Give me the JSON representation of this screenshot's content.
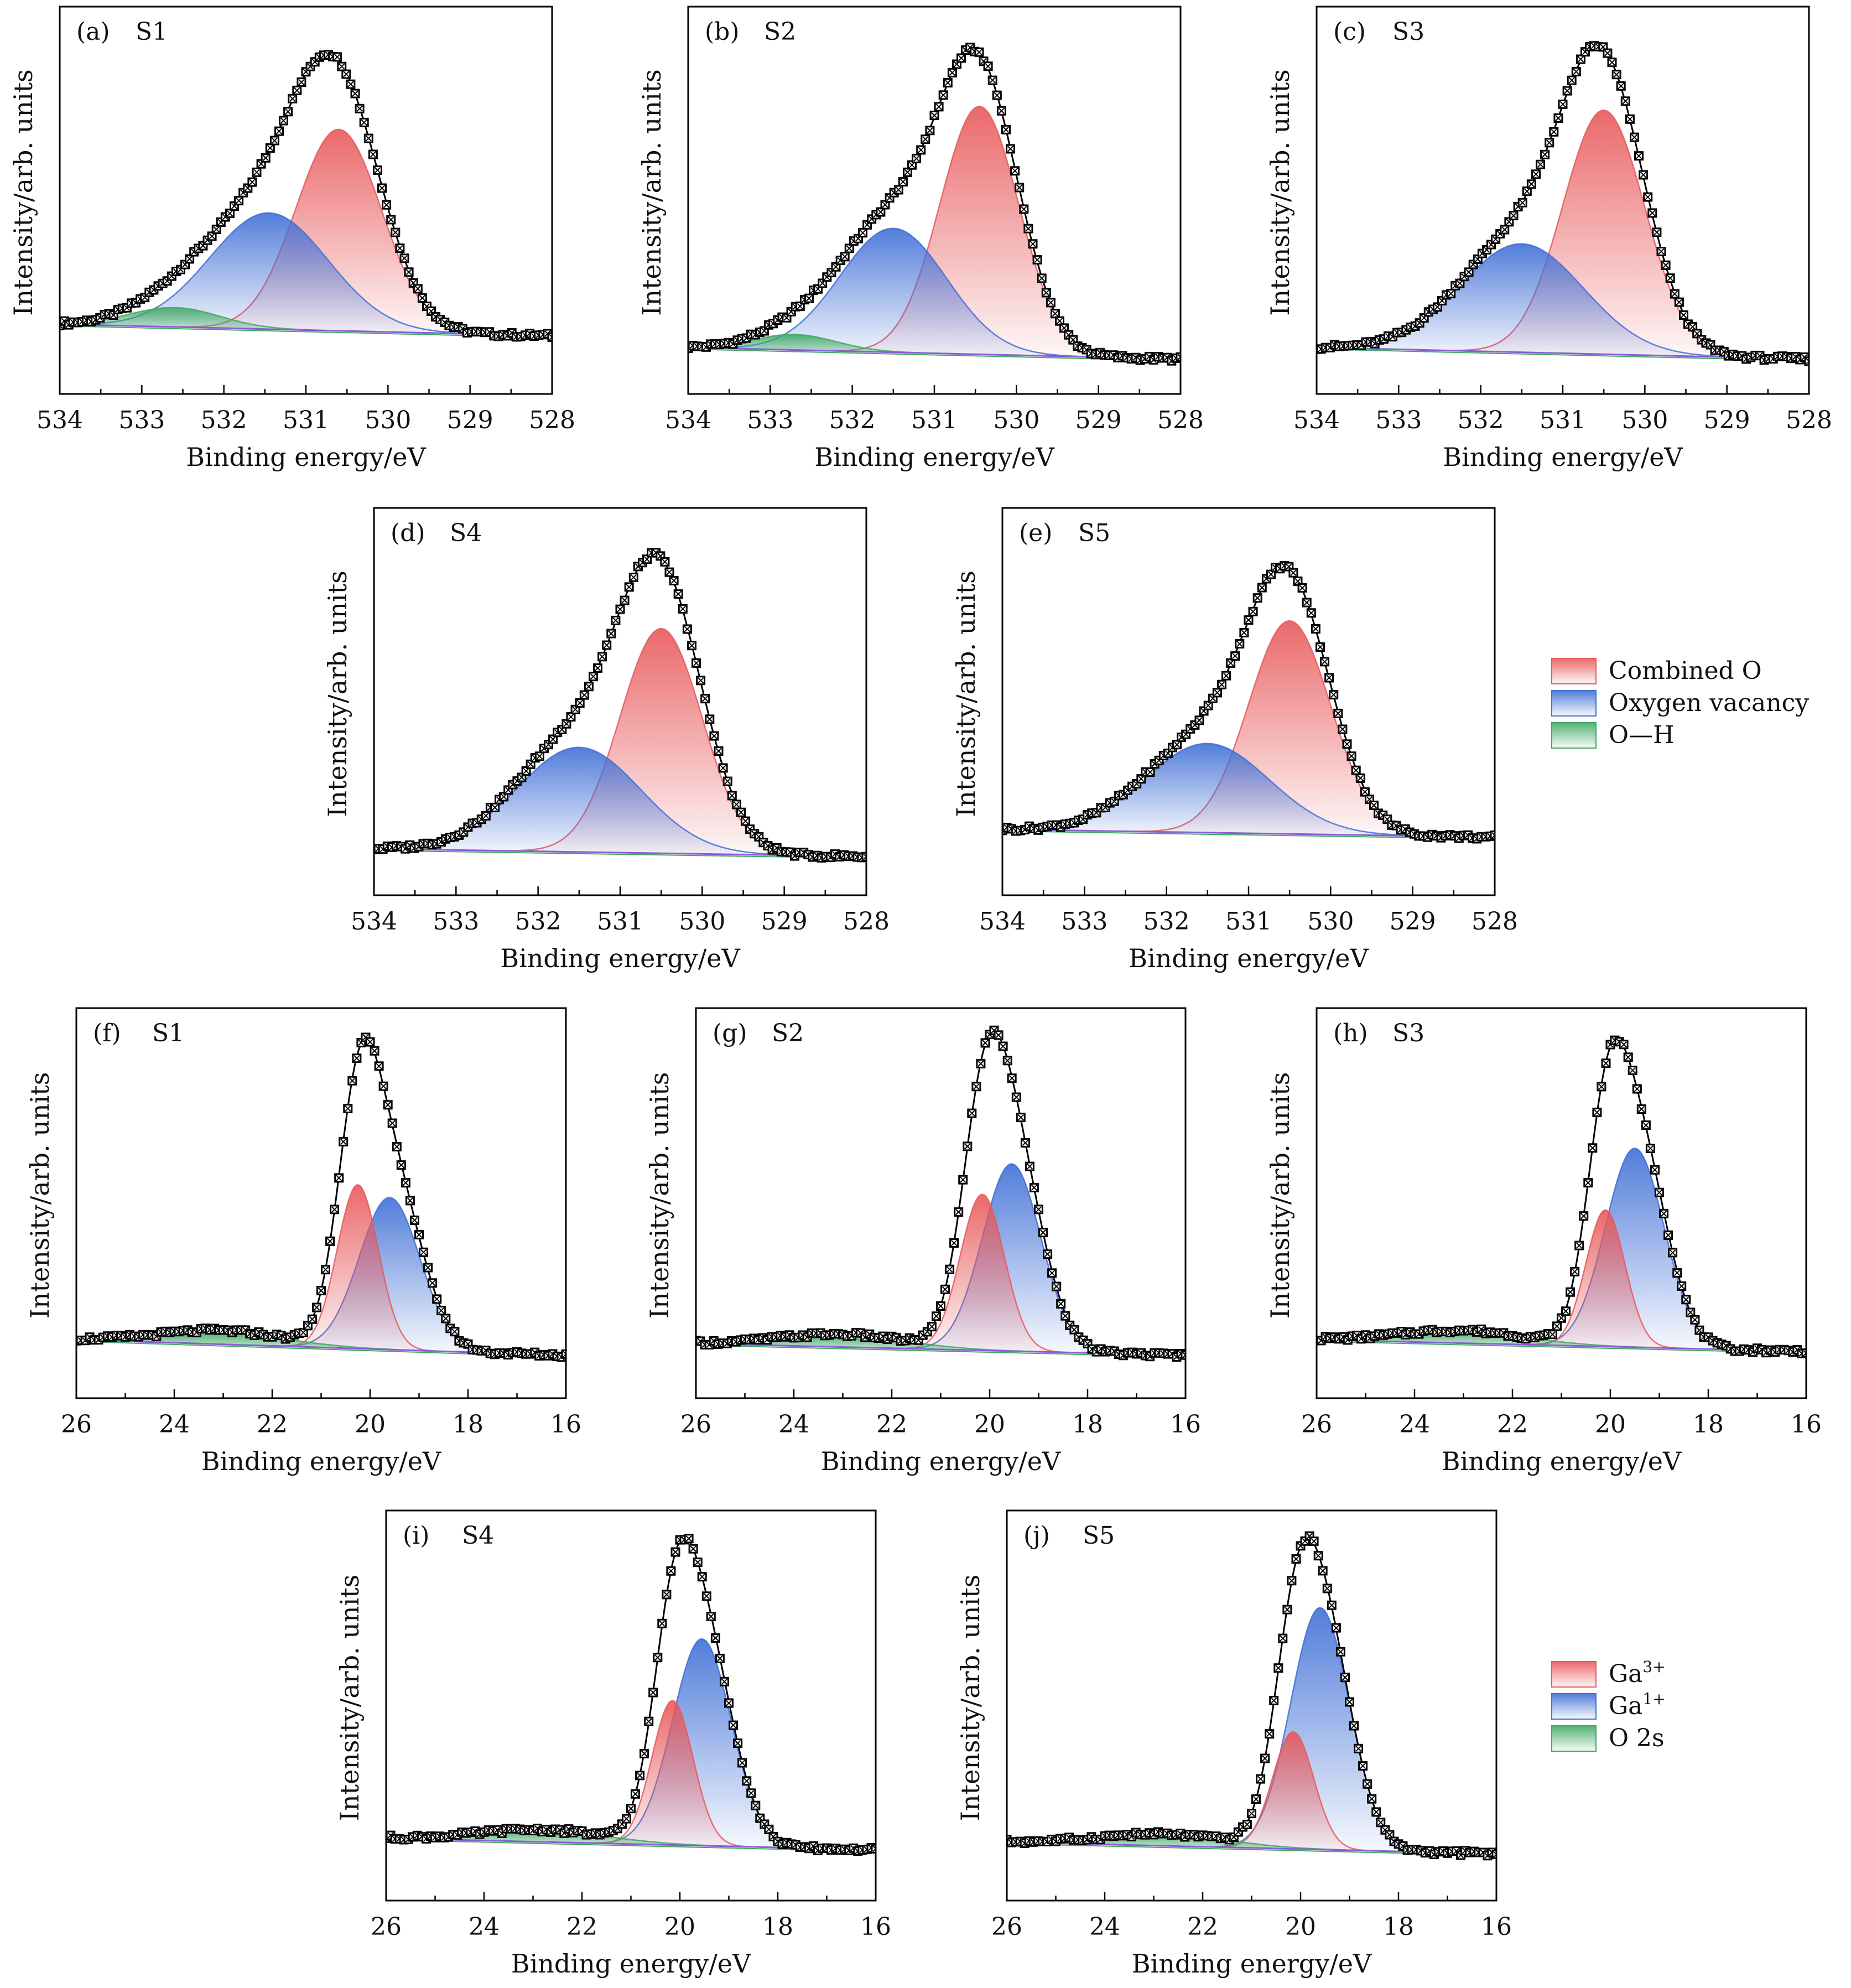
{
  "figure": {
    "legend_o1s": {
      "entries": [
        {
          "label": "Combined O",
          "color": "#e8585a"
        },
        {
          "label": "Oxygen vacancy",
          "color": "#3f6fd6"
        },
        {
          "label": "O—H",
          "color": "#3fa863"
        }
      ]
    },
    "legend_ga3d": {
      "entries": [
        {
          "label": "Ga",
          "sup": "3+",
          "color": "#e8585a"
        },
        {
          "label": "Ga",
          "sup": "1+",
          "color": "#3f6fd6"
        },
        {
          "label": "O 2s",
          "sup": "",
          "color": "#3fa863"
        }
      ]
    }
  },
  "chart_data": [
    {
      "id": "a",
      "panel_label": "(a)",
      "sample": "S1",
      "type": "line",
      "xlabel": "Binding energy/eV",
      "ylabel": "Intensity/arb. units",
      "xlim": [
        534,
        528
      ],
      "xticks": [
        534,
        533,
        532,
        531,
        530,
        529,
        528
      ],
      "ylim": [
        0,
        1
      ],
      "baseline": {
        "from": [
          534,
          0.18
        ],
        "to": [
          528,
          0.15
        ]
      },
      "components": [
        {
          "name": "Combined O",
          "center": 530.6,
          "height": 0.52,
          "sigma": 0.52,
          "color": "#e8585a"
        },
        {
          "name": "Oxygen vacancy",
          "center": 531.45,
          "height": 0.3,
          "sigma": 0.72,
          "color": "#3f6fd6"
        },
        {
          "name": "O—H",
          "center": 532.6,
          "height": 0.05,
          "sigma": 0.55,
          "color": "#3fa863"
        }
      ],
      "envelope": {
        "peak_x": 530.75,
        "peak_y": 0.88
      }
    },
    {
      "id": "b",
      "panel_label": "(b)",
      "sample": "S2",
      "type": "line",
      "xlabel": "Binding energy/eV",
      "ylabel": "Intensity/arb. units",
      "xlim": [
        534,
        528
      ],
      "xticks": [
        534,
        533,
        532,
        531,
        530,
        529,
        528
      ],
      "ylim": [
        0,
        1
      ],
      "baseline": {
        "from": [
          534,
          0.12
        ],
        "to": [
          528,
          0.09
        ]
      },
      "components": [
        {
          "name": "Combined O",
          "center": 530.45,
          "height": 0.64,
          "sigma": 0.48,
          "color": "#e8585a"
        },
        {
          "name": "Oxygen vacancy",
          "center": 531.5,
          "height": 0.32,
          "sigma": 0.65,
          "color": "#3f6fd6"
        },
        {
          "name": "O—H",
          "center": 532.7,
          "height": 0.04,
          "sigma": 0.5,
          "color": "#3fa863"
        }
      ],
      "envelope": {
        "peak_x": 530.6,
        "peak_y": 0.89
      }
    },
    {
      "id": "c",
      "panel_label": "(c)",
      "sample": "S3",
      "type": "line",
      "xlabel": "Binding energy/eV",
      "ylabel": "Intensity/arb. units",
      "xlim": [
        534,
        528
      ],
      "xticks": [
        534,
        533,
        532,
        531,
        530,
        529,
        528
      ],
      "ylim": [
        0,
        1
      ],
      "baseline": {
        "from": [
          534,
          0.12
        ],
        "to": [
          528,
          0.09
        ]
      },
      "components": [
        {
          "name": "Combined O",
          "center": 530.5,
          "height": 0.63,
          "sigma": 0.5,
          "color": "#e8585a"
        },
        {
          "name": "Oxygen vacancy",
          "center": 531.5,
          "height": 0.28,
          "sigma": 0.75,
          "color": "#3f6fd6"
        }
      ],
      "envelope": {
        "peak_x": 530.55,
        "peak_y": 0.9
      }
    },
    {
      "id": "d",
      "panel_label": "(d)",
      "sample": "S4",
      "type": "line",
      "xlabel": "Binding energy/eV",
      "ylabel": "Intensity/arb. units",
      "xlim": [
        534,
        528
      ],
      "xticks": [
        534,
        533,
        532,
        531,
        530,
        529,
        528
      ],
      "ylim": [
        0,
        1
      ],
      "baseline": {
        "from": [
          534,
          0.12
        ],
        "to": [
          528,
          0.1
        ]
      },
      "components": [
        {
          "name": "Combined O",
          "center": 530.5,
          "height": 0.58,
          "sigma": 0.5,
          "color": "#e8585a"
        },
        {
          "name": "Oxygen vacancy",
          "center": 531.5,
          "height": 0.27,
          "sigma": 0.75,
          "color": "#3f6fd6"
        }
      ],
      "envelope": {
        "peak_x": 530.6,
        "peak_y": 0.88
      }
    },
    {
      "id": "e",
      "panel_label": "(e)",
      "sample": "S5",
      "type": "line",
      "xlabel": "Binding energy/eV",
      "ylabel": "Intensity/arb. units",
      "xlim": [
        534,
        528
      ],
      "xticks": [
        534,
        533,
        532,
        531,
        530,
        529,
        528
      ],
      "ylim": [
        0,
        1
      ],
      "baseline": {
        "from": [
          534,
          0.17
        ],
        "to": [
          528,
          0.15
        ]
      },
      "components": [
        {
          "name": "Combined O",
          "center": 530.5,
          "height": 0.55,
          "sigma": 0.5,
          "color": "#e8585a"
        },
        {
          "name": "Oxygen vacancy",
          "center": 531.5,
          "height": 0.23,
          "sigma": 0.75,
          "color": "#3f6fd6"
        }
      ],
      "envelope": {
        "peak_x": 530.55,
        "peak_y": 0.85
      }
    },
    {
      "id": "f",
      "panel_label": "(f)",
      "sample": "S1",
      "type": "line",
      "xlabel": "Binding energy/eV",
      "ylabel": "Intensity/arb. units",
      "xlim": [
        26,
        16
      ],
      "xticks": [
        26,
        24,
        22,
        20,
        18,
        16
      ],
      "ylim": [
        0,
        1
      ],
      "baseline": {
        "from": [
          26,
          0.15
        ],
        "to": [
          16,
          0.11
        ]
      },
      "components": [
        {
          "name": "Ga3+",
          "center": 20.25,
          "height": 0.42,
          "sigma": 0.42,
          "color": "#e8585a"
        },
        {
          "name": "Ga1+",
          "center": 19.6,
          "height": 0.39,
          "sigma": 0.62,
          "color": "#3f6fd6"
        },
        {
          "name": "O 2s",
          "center": 23.0,
          "height": 0.03,
          "sigma": 1.3,
          "color": "#3fa863"
        }
      ],
      "envelope": {
        "peak_x": 20.0,
        "peak_y": 0.92
      }
    },
    {
      "id": "g",
      "panel_label": "(g)",
      "sample": "S2",
      "type": "line",
      "xlabel": "Binding energy/eV",
      "ylabel": "Intensity/arb. units",
      "xlim": [
        26,
        16
      ],
      "xticks": [
        26,
        24,
        22,
        20,
        18,
        16
      ],
      "ylim": [
        0,
        1
      ],
      "baseline": {
        "from": [
          26,
          0.14
        ],
        "to": [
          16,
          0.11
        ]
      },
      "components": [
        {
          "name": "Ga3+",
          "center": 20.15,
          "height": 0.4,
          "sigma": 0.45,
          "color": "#e8585a"
        },
        {
          "name": "Ga1+",
          "center": 19.55,
          "height": 0.48,
          "sigma": 0.6,
          "color": "#3f6fd6"
        },
        {
          "name": "O 2s",
          "center": 23.0,
          "height": 0.03,
          "sigma": 1.3,
          "color": "#3fa863"
        }
      ],
      "envelope": {
        "peak_x": 19.85,
        "peak_y": 0.94
      }
    },
    {
      "id": "h",
      "panel_label": "(h)",
      "sample": "S3",
      "type": "line",
      "xlabel": "Binding energy/eV",
      "ylabel": "Intensity/arb. units",
      "xlim": [
        26,
        16
      ],
      "xticks": [
        26,
        24,
        22,
        20,
        18,
        16
      ],
      "ylim": [
        0,
        1
      ],
      "baseline": {
        "from": [
          26,
          0.15
        ],
        "to": [
          16,
          0.12
        ]
      },
      "components": [
        {
          "name": "Ga3+",
          "center": 20.1,
          "height": 0.35,
          "sigma": 0.4,
          "color": "#e8585a"
        },
        {
          "name": "Ga1+",
          "center": 19.5,
          "height": 0.51,
          "sigma": 0.6,
          "color": "#3f6fd6"
        },
        {
          "name": "O 2s",
          "center": 23.0,
          "height": 0.03,
          "sigma": 1.3,
          "color": "#3fa863"
        }
      ],
      "envelope": {
        "peak_x": 19.8,
        "peak_y": 0.92
      }
    },
    {
      "id": "i",
      "panel_label": "(i)",
      "sample": "S4",
      "type": "line",
      "xlabel": "Binding energy/eV",
      "ylabel": "Intensity/arb. units",
      "xlim": [
        26,
        16
      ],
      "xticks": [
        26,
        24,
        22,
        20,
        18,
        16
      ],
      "ylim": [
        0,
        1
      ],
      "baseline": {
        "from": [
          26,
          0.16
        ],
        "to": [
          16,
          0.13
        ]
      },
      "components": [
        {
          "name": "Ga3+",
          "center": 20.15,
          "height": 0.37,
          "sigma": 0.42,
          "color": "#e8585a"
        },
        {
          "name": "Ga1+",
          "center": 19.55,
          "height": 0.53,
          "sigma": 0.6,
          "color": "#3f6fd6"
        },
        {
          "name": "O 2s",
          "center": 22.8,
          "height": 0.03,
          "sigma": 1.3,
          "color": "#3fa863"
        }
      ],
      "envelope": {
        "peak_x": 19.9,
        "peak_y": 0.93
      }
    },
    {
      "id": "j",
      "panel_label": "(j)",
      "sample": "S5",
      "type": "line",
      "xlabel": "Binding energy/eV",
      "ylabel": "Intensity/arb. units",
      "xlim": [
        26,
        16
      ],
      "xticks": [
        26,
        24,
        22,
        20,
        18,
        16
      ],
      "ylim": [
        0,
        1
      ],
      "baseline": {
        "from": [
          26,
          0.15
        ],
        "to": [
          16,
          0.12
        ]
      },
      "components": [
        {
          "name": "Ga3+",
          "center": 20.15,
          "height": 0.3,
          "sigma": 0.42,
          "color": "#e8585a"
        },
        {
          "name": "Ga1+",
          "center": 19.6,
          "height": 0.62,
          "sigma": 0.6,
          "color": "#3f6fd6"
        },
        {
          "name": "O 2s",
          "center": 22.8,
          "height": 0.03,
          "sigma": 1.3,
          "color": "#3fa863"
        }
      ],
      "envelope": {
        "peak_x": 19.9,
        "peak_y": 0.93
      }
    }
  ]
}
